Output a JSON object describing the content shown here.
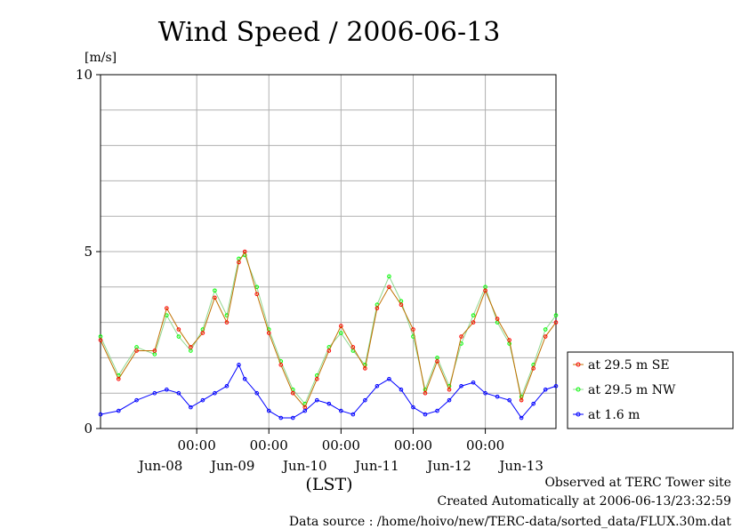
{
  "chart_data": {
    "type": "line",
    "title": "Wind Speed / 2006-06-13",
    "ylabel": "[m/s]",
    "xlabel": "(LST)",
    "ylim": [
      0,
      10
    ],
    "xlim": [
      "2006-06-07T16:00",
      "2006-06-13T23:30"
    ],
    "y_ticks": [
      "0",
      "5",
      "10"
    ],
    "x_time_ticks": [
      "00:00",
      "00:00",
      "00:00",
      "00:00",
      "00:00"
    ],
    "x_date_labels": [
      "Jun-08",
      "Jun-09",
      "Jun-10",
      "Jun-11",
      "Jun-12",
      "Jun-13"
    ],
    "x_date_label_times": [
      "2006-06-08T12:00",
      "2006-06-09T12:00",
      "2006-06-10T12:00",
      "2006-06-11T12:00",
      "2006-06-12T12:00",
      "2006-06-13T12:00"
    ],
    "x_time_tick_times": [
      "2006-06-09T00:00",
      "2006-06-10T00:00",
      "2006-06-11T00:00",
      "2006-06-12T00:00",
      "2006-06-13T00:00"
    ],
    "grid": true,
    "legend_position": "right",
    "series": [
      {
        "name": "at 29.5 m SE",
        "color": "#ff0000",
        "line_color": "#c07000",
        "points": [
          [
            "2006-06-07T16:00",
            2.5
          ],
          [
            "2006-06-07T22:00",
            1.4
          ],
          [
            "2006-06-08T04:00",
            2.2
          ],
          [
            "2006-06-08T10:00",
            2.2
          ],
          [
            "2006-06-08T14:00",
            3.4
          ],
          [
            "2006-06-08T18:00",
            2.8
          ],
          [
            "2006-06-08T22:00",
            2.3
          ],
          [
            "2006-06-09T02:00",
            2.7
          ],
          [
            "2006-06-09T06:00",
            3.7
          ],
          [
            "2006-06-09T10:00",
            3.0
          ],
          [
            "2006-06-09T14:00",
            4.7
          ],
          [
            "2006-06-09T16:00",
            5.0
          ],
          [
            "2006-06-09T20:00",
            3.8
          ],
          [
            "2006-06-10T00:00",
            2.7
          ],
          [
            "2006-06-10T04:00",
            1.8
          ],
          [
            "2006-06-10T08:00",
            1.0
          ],
          [
            "2006-06-10T12:00",
            0.6
          ],
          [
            "2006-06-10T16:00",
            1.4
          ],
          [
            "2006-06-10T20:00",
            2.2
          ],
          [
            "2006-06-11T00:00",
            2.9
          ],
          [
            "2006-06-11T04:00",
            2.3
          ],
          [
            "2006-06-11T08:00",
            1.7
          ],
          [
            "2006-06-11T12:00",
            3.4
          ],
          [
            "2006-06-11T16:00",
            4.0
          ],
          [
            "2006-06-11T20:00",
            3.5
          ],
          [
            "2006-06-12T00:00",
            2.8
          ],
          [
            "2006-06-12T04:00",
            1.0
          ],
          [
            "2006-06-12T08:00",
            1.9
          ],
          [
            "2006-06-12T12:00",
            1.1
          ],
          [
            "2006-06-12T16:00",
            2.6
          ],
          [
            "2006-06-12T20:00",
            3.0
          ],
          [
            "2006-06-13T00:00",
            3.9
          ],
          [
            "2006-06-13T04:00",
            3.1
          ],
          [
            "2006-06-13T08:00",
            2.5
          ],
          [
            "2006-06-13T12:00",
            0.8
          ],
          [
            "2006-06-13T16:00",
            1.7
          ],
          [
            "2006-06-13T20:00",
            2.6
          ],
          [
            "2006-06-13T23:30",
            3.0
          ]
        ]
      },
      {
        "name": "at 29.5 m NW",
        "color": "#00ff00",
        "line_color": "#90d890",
        "points": [
          [
            "2006-06-07T16:00",
            2.6
          ],
          [
            "2006-06-07T22:00",
            1.5
          ],
          [
            "2006-06-08T04:00",
            2.3
          ],
          [
            "2006-06-08T10:00",
            2.1
          ],
          [
            "2006-06-08T14:00",
            3.2
          ],
          [
            "2006-06-08T18:00",
            2.6
          ],
          [
            "2006-06-08T22:00",
            2.2
          ],
          [
            "2006-06-09T02:00",
            2.8
          ],
          [
            "2006-06-09T06:00",
            3.9
          ],
          [
            "2006-06-09T10:00",
            3.2
          ],
          [
            "2006-06-09T14:00",
            4.8
          ],
          [
            "2006-06-09T16:00",
            4.9
          ],
          [
            "2006-06-09T20:00",
            4.0
          ],
          [
            "2006-06-10T00:00",
            2.8
          ],
          [
            "2006-06-10T04:00",
            1.9
          ],
          [
            "2006-06-10T08:00",
            1.1
          ],
          [
            "2006-06-10T12:00",
            0.7
          ],
          [
            "2006-06-10T16:00",
            1.5
          ],
          [
            "2006-06-10T20:00",
            2.3
          ],
          [
            "2006-06-11T00:00",
            2.7
          ],
          [
            "2006-06-11T04:00",
            2.2
          ],
          [
            "2006-06-11T08:00",
            1.8
          ],
          [
            "2006-06-11T12:00",
            3.5
          ],
          [
            "2006-06-11T16:00",
            4.3
          ],
          [
            "2006-06-11T20:00",
            3.6
          ],
          [
            "2006-06-12T00:00",
            2.6
          ],
          [
            "2006-06-12T04:00",
            1.1
          ],
          [
            "2006-06-12T08:00",
            2.0
          ],
          [
            "2006-06-12T12:00",
            1.2
          ],
          [
            "2006-06-12T16:00",
            2.4
          ],
          [
            "2006-06-12T20:00",
            3.2
          ],
          [
            "2006-06-13T00:00",
            4.0
          ],
          [
            "2006-06-13T04:00",
            3.0
          ],
          [
            "2006-06-13T08:00",
            2.4
          ],
          [
            "2006-06-13T12:00",
            0.9
          ],
          [
            "2006-06-13T16:00",
            1.8
          ],
          [
            "2006-06-13T20:00",
            2.8
          ],
          [
            "2006-06-13T23:30",
            3.2
          ]
        ]
      },
      {
        "name": "at 1.6 m",
        "color": "#0000ff",
        "line_color": "#0000ff",
        "points": [
          [
            "2006-06-07T16:00",
            0.4
          ],
          [
            "2006-06-07T22:00",
            0.5
          ],
          [
            "2006-06-08T04:00",
            0.8
          ],
          [
            "2006-06-08T10:00",
            1.0
          ],
          [
            "2006-06-08T14:00",
            1.1
          ],
          [
            "2006-06-08T18:00",
            1.0
          ],
          [
            "2006-06-08T22:00",
            0.6
          ],
          [
            "2006-06-09T02:00",
            0.8
          ],
          [
            "2006-06-09T06:00",
            1.0
          ],
          [
            "2006-06-09T10:00",
            1.2
          ],
          [
            "2006-06-09T14:00",
            1.8
          ],
          [
            "2006-06-09T16:00",
            1.4
          ],
          [
            "2006-06-09T20:00",
            1.0
          ],
          [
            "2006-06-10T00:00",
            0.5
          ],
          [
            "2006-06-10T04:00",
            0.3
          ],
          [
            "2006-06-10T08:00",
            0.3
          ],
          [
            "2006-06-10T12:00",
            0.5
          ],
          [
            "2006-06-10T16:00",
            0.8
          ],
          [
            "2006-06-10T20:00",
            0.7
          ],
          [
            "2006-06-11T00:00",
            0.5
          ],
          [
            "2006-06-11T04:00",
            0.4
          ],
          [
            "2006-06-11T08:00",
            0.8
          ],
          [
            "2006-06-11T12:00",
            1.2
          ],
          [
            "2006-06-11T16:00",
            1.4
          ],
          [
            "2006-06-11T20:00",
            1.1
          ],
          [
            "2006-06-12T00:00",
            0.6
          ],
          [
            "2006-06-12T04:00",
            0.4
          ],
          [
            "2006-06-12T08:00",
            0.5
          ],
          [
            "2006-06-12T12:00",
            0.8
          ],
          [
            "2006-06-12T16:00",
            1.2
          ],
          [
            "2006-06-12T20:00",
            1.3
          ],
          [
            "2006-06-13T00:00",
            1.0
          ],
          [
            "2006-06-13T04:00",
            0.9
          ],
          [
            "2006-06-13T08:00",
            0.8
          ],
          [
            "2006-06-13T12:00",
            0.3
          ],
          [
            "2006-06-13T16:00",
            0.7
          ],
          [
            "2006-06-13T20:00",
            1.1
          ],
          [
            "2006-06-13T23:30",
            1.2
          ]
        ]
      }
    ]
  },
  "footer": {
    "line1": "Observed at TERC Tower site",
    "line2": "Created Automatically at 2006-06-13/23:32:59",
    "line3": "Data source : /home/hoivo/new/TERC-data/sorted_data/FLUX.30m.dat"
  }
}
